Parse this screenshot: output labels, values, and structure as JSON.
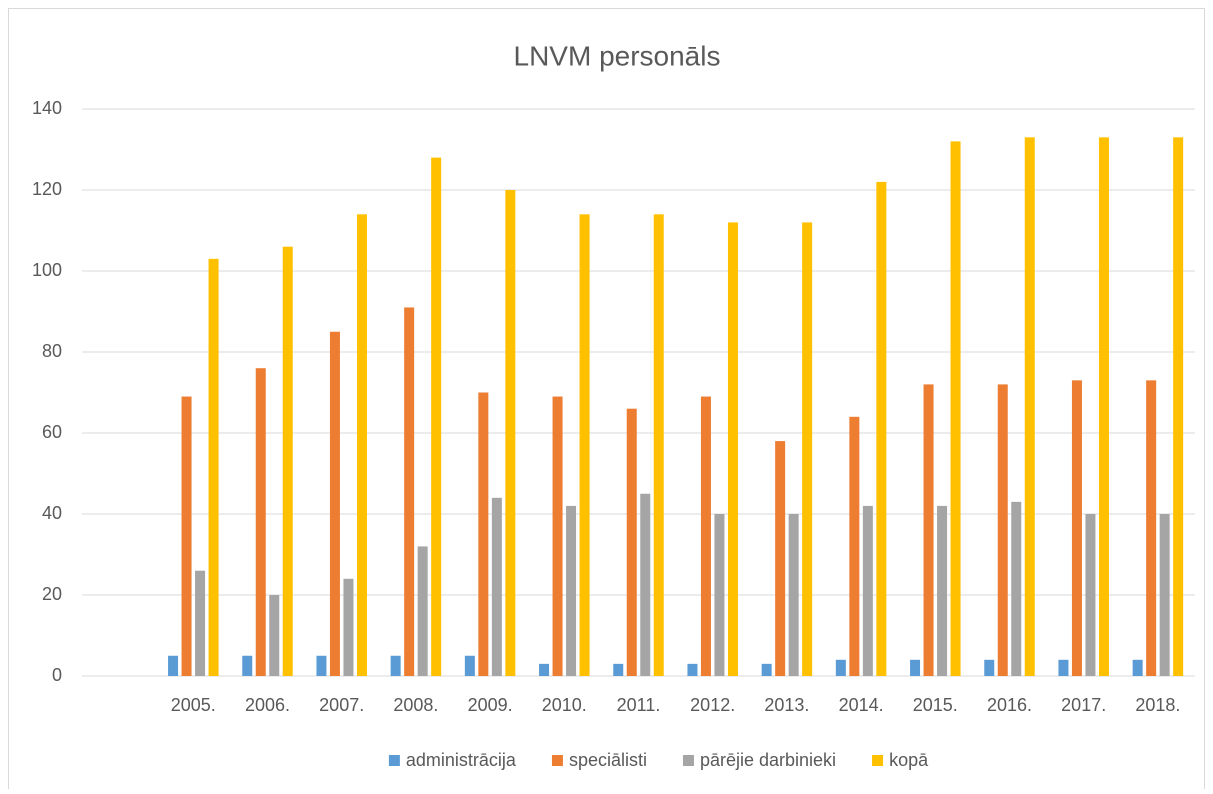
{
  "chart_data": {
    "type": "bar",
    "title": "LNVM personāls",
    "categories": [
      null,
      "2005.",
      "2006.",
      "2007.",
      "2008.",
      "2009.",
      "2010.",
      "2011.",
      "2012.",
      "2013.",
      "2014.",
      "2015.",
      "2016.",
      "2017.",
      "2018."
    ],
    "series": [
      {
        "name": "administrācija",
        "color": "#5b9bd5",
        "values": [
          null,
          5,
          5,
          5,
          5,
          5,
          3,
          3,
          3,
          3,
          4,
          4,
          4,
          4,
          4
        ]
      },
      {
        "name": "speciālisti",
        "color": "#ed7d31",
        "values": [
          null,
          69,
          76,
          85,
          91,
          70,
          69,
          66,
          69,
          58,
          64,
          72,
          72,
          73,
          73
        ]
      },
      {
        "name": "pārējie darbinieki",
        "color": "#a5a5a5",
        "values": [
          null,
          26,
          20,
          24,
          32,
          44,
          42,
          45,
          40,
          40,
          42,
          42,
          43,
          40,
          40
        ]
      },
      {
        "name": "kopā",
        "color": "#ffc000",
        "values": [
          null,
          103,
          106,
          114,
          128,
          120,
          114,
          114,
          112,
          112,
          122,
          132,
          133,
          133,
          133
        ]
      }
    ],
    "ylim": [
      0,
      140
    ],
    "yticks": [
      0,
      20,
      40,
      60,
      80,
      100,
      120,
      140
    ],
    "grid": true,
    "legend": "bottom"
  }
}
